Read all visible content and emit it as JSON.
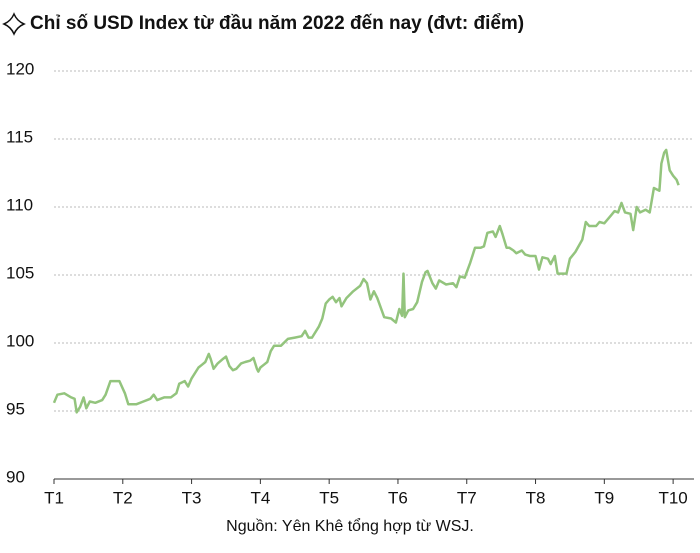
{
  "chart_data": {
    "type": "line",
    "title": "Chỉ số USD Index từ đầu năm 2022 đến nay (đvt: điểm)",
    "source": "Nguồn: Yên Khê tổng hợp từ WSJ.",
    "x": [
      0,
      0.05,
      0.15,
      0.25,
      0.3,
      0.33,
      0.38,
      0.43,
      0.47,
      0.52,
      0.6,
      0.7,
      0.75,
      0.82,
      0.95,
      1.03,
      1.08,
      1.2,
      1.3,
      1.4,
      1.45,
      1.5,
      1.6,
      1.7,
      1.78,
      1.82,
      1.9,
      1.95,
      2.0,
      2.1,
      2.15,
      2.2,
      2.25,
      2.28,
      2.32,
      2.38,
      2.45,
      2.5,
      2.55,
      2.6,
      2.65,
      2.72,
      2.78,
      2.85,
      2.9,
      2.95,
      2.97,
      3.0,
      3.05,
      3.1,
      3.15,
      3.2,
      3.3,
      3.4,
      3.5,
      3.6,
      3.65,
      3.7,
      3.75,
      3.85,
      3.9,
      3.95,
      4.0,
      4.05,
      4.1,
      4.15,
      4.18,
      4.25,
      4.35,
      4.45,
      4.5,
      4.55,
      4.6,
      4.65,
      4.7,
      4.8,
      4.9,
      4.97,
      5.02,
      5.06,
      5.08,
      5.1,
      5.15,
      5.22,
      5.28,
      5.35,
      5.4,
      5.43,
      5.5,
      5.55,
      5.6,
      5.7,
      5.8,
      5.85,
      5.9,
      5.97,
      6.05,
      6.12,
      6.2,
      6.25,
      6.3,
      6.38,
      6.42,
      6.48,
      6.52,
      6.58,
      6.62,
      6.68,
      6.72,
      6.8,
      6.85,
      6.92,
      7.0,
      7.05,
      7.1,
      7.18,
      7.22,
      7.28,
      7.32,
      7.45,
      7.5,
      7.58,
      7.68,
      7.73,
      7.78,
      7.88,
      7.93,
      8.0,
      8.1,
      8.15,
      8.2,
      8.25,
      8.3,
      8.38,
      8.42,
      8.47,
      8.52,
      8.6,
      8.66,
      8.72,
      8.8,
      8.83,
      8.87,
      8.9,
      8.95,
      9.0,
      9.05,
      9.08
    ],
    "series": [
      {
        "name": "USD Index",
        "color": "#93c47d",
        "values": [
          95.6,
          96.2,
          96.3,
          96.0,
          95.9,
          94.9,
          95.3,
          96.0,
          95.2,
          95.7,
          95.6,
          95.8,
          96.2,
          97.2,
          97.2,
          96.3,
          95.5,
          95.5,
          95.7,
          95.9,
          96.2,
          95.8,
          96.0,
          96.0,
          96.3,
          97.0,
          97.2,
          96.8,
          97.4,
          98.2,
          98.4,
          98.6,
          99.2,
          98.8,
          98.1,
          98.5,
          98.8,
          99.0,
          98.3,
          98.0,
          98.1,
          98.5,
          98.6,
          98.7,
          98.9,
          98.1,
          97.9,
          98.2,
          98.4,
          98.6,
          99.4,
          99.8,
          99.8,
          100.3,
          100.4,
          100.5,
          100.9,
          100.4,
          100.4,
          101.2,
          101.8,
          102.9,
          103.2,
          103.4,
          103.0,
          103.3,
          102.7,
          103.3,
          103.8,
          104.2,
          104.7,
          104.4,
          103.2,
          103.8,
          103.3,
          101.9,
          101.8,
          101.5,
          102.5,
          102.0,
          105.1,
          101.9,
          102.4,
          102.5,
          103.0,
          104.5,
          105.2,
          105.3,
          104.4,
          104.0,
          104.6,
          104.3,
          104.4,
          104.1,
          104.9,
          104.8,
          105.9,
          107.0,
          107.0,
          107.1,
          108.1,
          108.2,
          107.8,
          108.6,
          108.0,
          107.0,
          107.0,
          106.8,
          106.6,
          106.8,
          106.5,
          106.4,
          106.4,
          105.4,
          106.3,
          106.2,
          105.8,
          106.4,
          105.1,
          105.1,
          106.2,
          106.7,
          107.6,
          108.9,
          108.6,
          108.6,
          108.9,
          108.8,
          109.4,
          109.7,
          109.6,
          110.3,
          109.6,
          109.5,
          108.3,
          110.0,
          109.6,
          109.8,
          109.6,
          111.4,
          111.2,
          113.2,
          114.0,
          114.2,
          112.7,
          112.3,
          112.0,
          111.6
        ]
      }
    ],
    "xlim": [
      0,
      9.1
    ],
    "xticks": [
      {
        "value": 0,
        "label": "T1"
      },
      {
        "value": 1,
        "label": "T2"
      },
      {
        "value": 2,
        "label": "T3"
      },
      {
        "value": 3,
        "label": "T4"
      },
      {
        "value": 4,
        "label": "T5"
      },
      {
        "value": 5,
        "label": "T6"
      },
      {
        "value": 6,
        "label": "T7"
      },
      {
        "value": 7,
        "label": "T8"
      },
      {
        "value": 8,
        "label": "T9"
      },
      {
        "value": 9,
        "label": "T10"
      }
    ],
    "ylim": [
      90,
      120
    ],
    "yticks": [
      90,
      95,
      100,
      105,
      110,
      115,
      120
    ],
    "grid": true
  }
}
